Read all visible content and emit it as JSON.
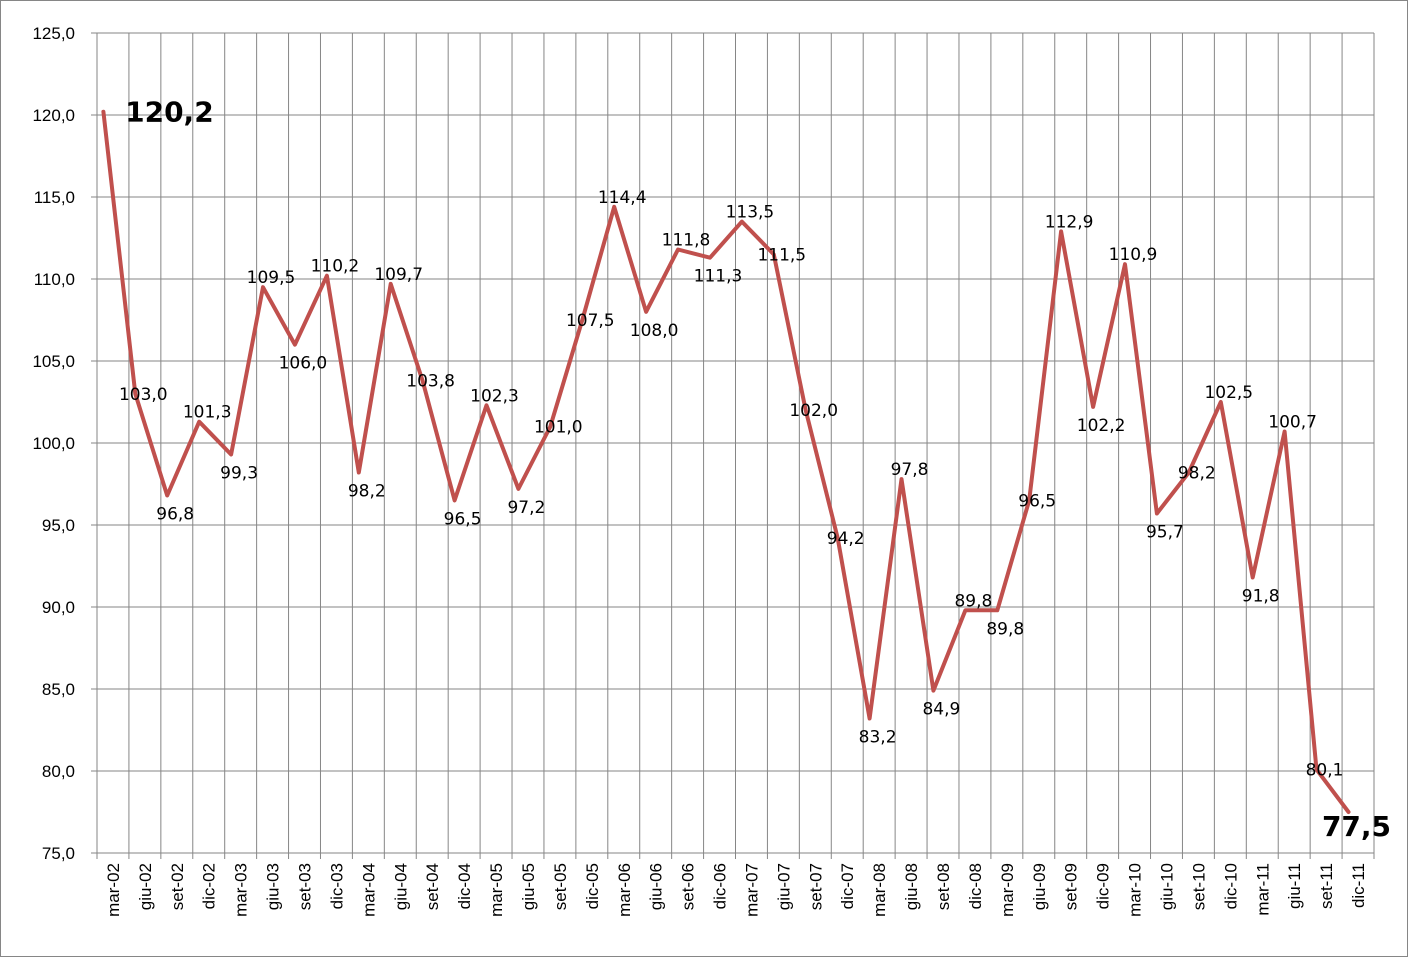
{
  "chart_data": {
    "type": "line",
    "title": "",
    "xlabel": "",
    "ylabel": "",
    "ylim": [
      75,
      125
    ],
    "yticks": [
      "75,0",
      "80,0",
      "85,0",
      "90,0",
      "95,0",
      "100,0",
      "105,0",
      "110,0",
      "115,0",
      "120,0",
      "125,0"
    ],
    "grid": true,
    "legend": "none",
    "categories": [
      "mar-02",
      "giu-02",
      "set-02",
      "dic-02",
      "mar-03",
      "giu-03",
      "set-03",
      "dic-03",
      "mar-04",
      "giu-04",
      "set-04",
      "dic-04",
      "mar-05",
      "giu-05",
      "set-05",
      "dic-05",
      "mar-06",
      "giu-06",
      "set-06",
      "dic-06",
      "mar-07",
      "giu-07",
      "set-07",
      "dic-07",
      "mar-08",
      "giu-08",
      "set-08",
      "dic-08",
      "mar-09",
      "giu-09",
      "set-09",
      "dic-09",
      "mar-10",
      "giu-10",
      "set-10",
      "dic-10",
      "mar-11",
      "giu-11",
      "set-11",
      "dic-11"
    ],
    "series": [
      {
        "color": "#c0504d",
        "values": [
          120.2,
          103.0,
          96.8,
          101.3,
          99.3,
          109.5,
          106.0,
          110.2,
          98.2,
          109.7,
          103.8,
          96.5,
          102.3,
          97.2,
          101.0,
          107.5,
          114.4,
          108.0,
          111.8,
          111.3,
          113.5,
          111.5,
          102.0,
          94.2,
          83.2,
          97.8,
          84.9,
          89.8,
          89.8,
          96.5,
          112.9,
          102.2,
          110.9,
          95.7,
          98.2,
          102.5,
          91.8,
          100.7,
          80.1,
          77.5
        ],
        "labels": [
          "120,2",
          "103,0",
          "96,8",
          "101,3",
          "99,3",
          "109,5",
          "106,0",
          "110,2",
          "98,2",
          "109,7",
          "103,8",
          "96,5",
          "102,3",
          "97,2",
          "101,0",
          "107,5",
          "114,4",
          "108,0",
          "111,8",
          "111,3",
          "113,5",
          "111,5",
          "102,0",
          "94,2",
          "83,2",
          "97,8",
          "84,9",
          "89,8",
          "89,8",
          "96,5",
          "112,9",
          "102,2",
          "110,9",
          "95,7",
          "98,2",
          "102,5",
          "91,8",
          "100,7",
          "80,1",
          "77,5"
        ]
      }
    ]
  }
}
